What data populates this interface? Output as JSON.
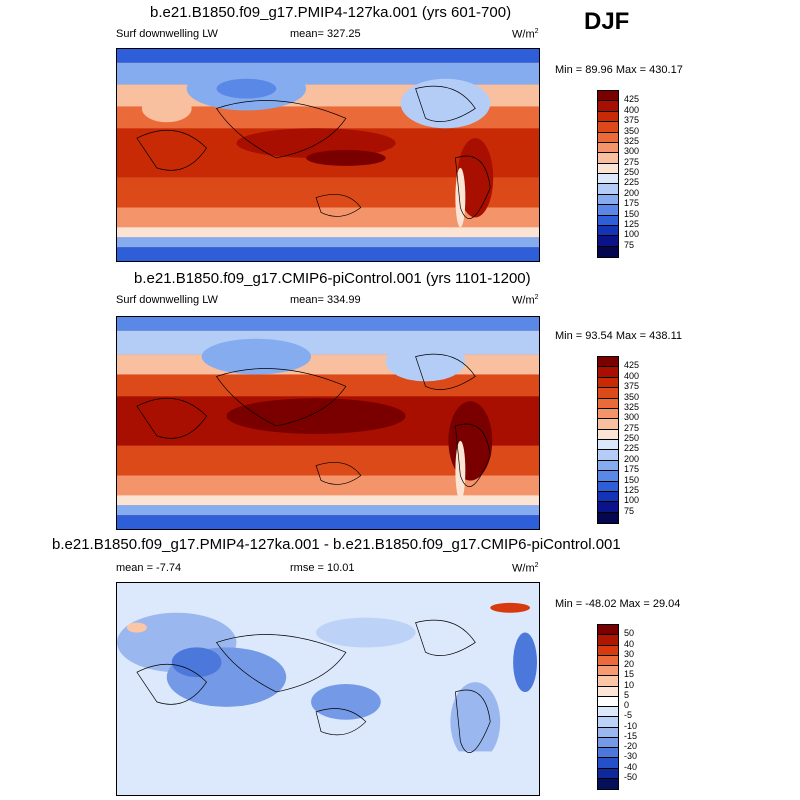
{
  "season": "DJF",
  "units_base": "W/m",
  "units_exp": "2",
  "panels": [
    {
      "title": "b.e21.B1850.f09_g17.PMIP4-127ka.001 (yrs 601-700)",
      "left_label": "Surf downwelling LW",
      "center_label": "mean= 327.25",
      "minmax": "Min =  89.96 Max = 430.17",
      "ticks": [
        "425",
        "400",
        "375",
        "350",
        "325",
        "300",
        "275",
        "250",
        "225",
        "200",
        "175",
        "150",
        "125",
        "100",
        "75"
      ]
    },
    {
      "title": "b.e21.B1850.f09_g17.CMIP6-piControl.001 (yrs 1101-1200)",
      "left_label": "Surf downwelling LW",
      "center_label": "mean= 334.99",
      "minmax": "Min =  93.54 Max = 438.11",
      "ticks": [
        "425",
        "400",
        "375",
        "350",
        "325",
        "300",
        "275",
        "250",
        "225",
        "200",
        "175",
        "150",
        "125",
        "100",
        "75"
      ]
    },
    {
      "title": "b.e21.B1850.f09_g17.PMIP4-127ka.001 - b.e21.B1850.f09_g17.CMIP6-piControl.001",
      "left_label": "mean =  -7.74",
      "center_label": "rmse =  10.01",
      "minmax": "Min = -48.02 Max =  29.04",
      "ticks": [
        "50",
        "40",
        "30",
        "20",
        "15",
        "10",
        "5",
        "0",
        "-5",
        "-10",
        "-15",
        "-20",
        "-30",
        "-40",
        "-50"
      ]
    }
  ],
  "colors": {
    "abs_scale": [
      "#7a0000",
      "#a80f00",
      "#c82a05",
      "#dd4a1a",
      "#ea6a3a",
      "#f4946a",
      "#f9c0a0",
      "#fbe4d4",
      "#dbe8fb",
      "#b4cdf7",
      "#86acf0",
      "#5a88e6",
      "#2f5fd8",
      "#1434b8",
      "#0a1488",
      "#050650"
    ],
    "diff_scale": [
      "#7a0000",
      "#b01500",
      "#d83a10",
      "#ee6a3a",
      "#f79a70",
      "#fbc6a6",
      "#fde6d8",
      "#ffffff",
      "#dce8fb",
      "#bcd2f6",
      "#9ab8ef",
      "#7499e6",
      "#4d78db",
      "#2550c8",
      "#0e2a9a",
      "#05105c"
    ]
  }
}
